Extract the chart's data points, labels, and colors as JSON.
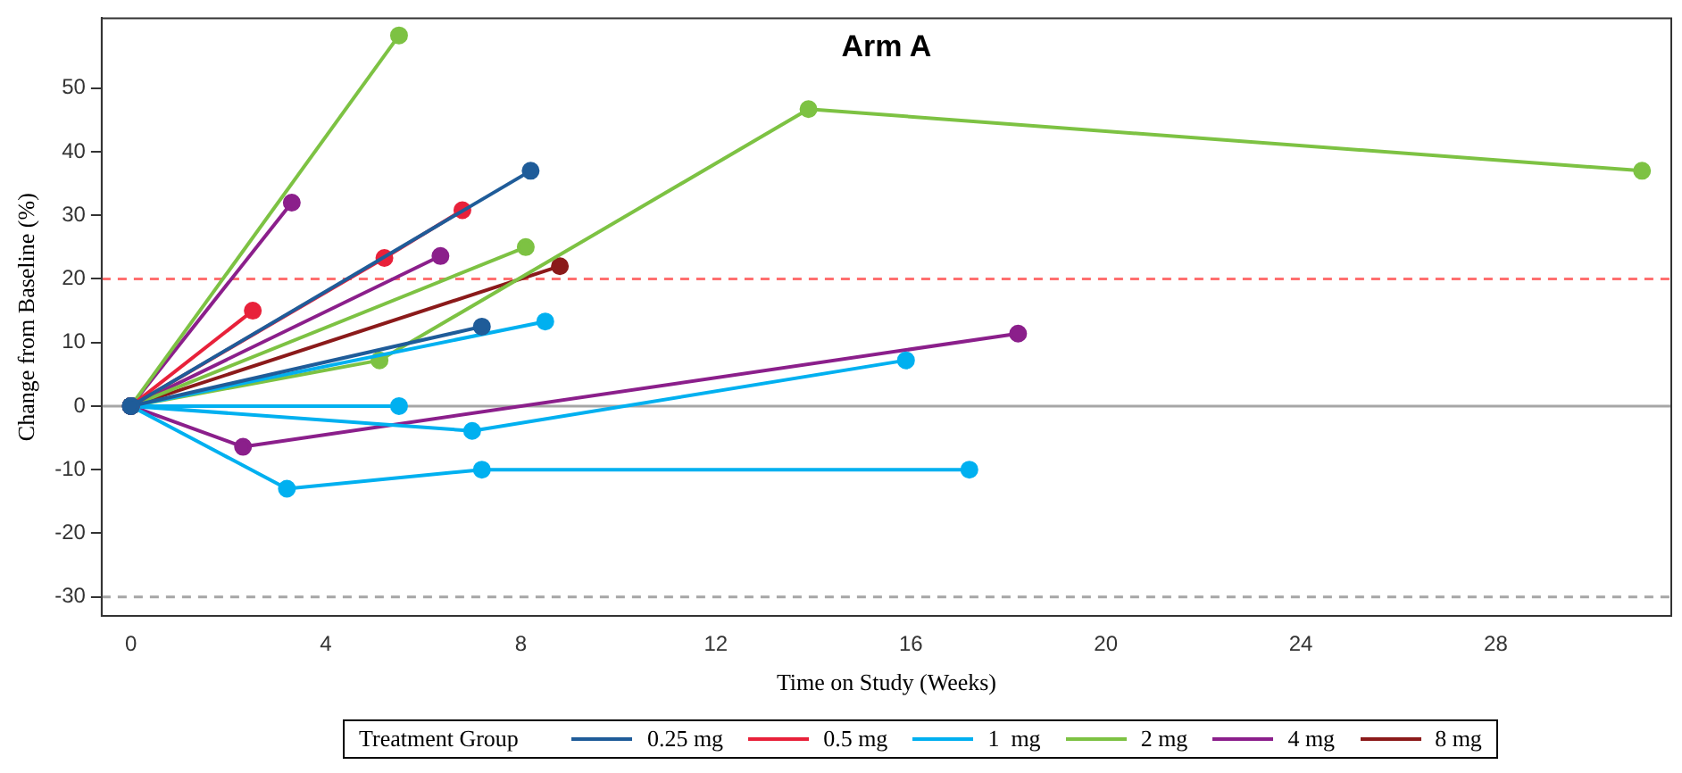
{
  "chart_data": {
    "type": "line",
    "title": "Arm A",
    "xlabel": "Time on Study (Weeks)",
    "ylabel": "Change from Baseline (%)",
    "legend_title": "Treatment Group",
    "xlim": [
      -0.6,
      31.6
    ],
    "xticks": [
      0,
      4,
      8,
      12,
      16,
      20,
      24,
      28
    ],
    "ylim": [
      -33,
      61
    ],
    "yticks": [
      -30,
      -20,
      -10,
      0,
      10,
      20,
      30,
      40,
      50
    ],
    "grid": false,
    "legend": "bottom",
    "marker": "circle",
    "line_style": "solid",
    "ref_lines": [
      {
        "axis": "y",
        "value": 20,
        "label": null,
        "color": "#ff6f6f",
        "line_style": "dashed"
      },
      {
        "axis": "y",
        "value": -30,
        "label": null,
        "color": "#a6a6a6",
        "line_style": "dashed"
      },
      {
        "axis": "y",
        "value": 0,
        "label": null,
        "color": "#a6a6a6",
        "line_style": "solid"
      }
    ],
    "series": [
      {
        "name": "0.25 mg",
        "color": "#1f5c99",
        "x": [
          0,
          8.2
        ],
        "values": [
          0,
          37
        ]
      },
      {
        "color": "#1f5c99",
        "x": [
          0,
          7.2
        ],
        "values": [
          0,
          12.5
        ]
      },
      {
        "name": "0.5 mg",
        "color": "#e8213a",
        "x": [
          0,
          2.5
        ],
        "values": [
          0,
          15
        ]
      },
      {
        "color": "#e8213a",
        "x": [
          0,
          5.2,
          6.8
        ],
        "values": [
          0,
          23.3,
          30.8
        ]
      },
      {
        "name": "1  mg",
        "color": "#00b0f0",
        "x": [
          0,
          8.5
        ],
        "values": [
          0,
          13.3
        ]
      },
      {
        "color": "#00b0f0",
        "x": [
          0,
          5.5
        ],
        "values": [
          0,
          0
        ]
      },
      {
        "color": "#00b0f0",
        "x": [
          0,
          7.0,
          15.9
        ],
        "values": [
          0,
          -3.9,
          7.2
        ]
      },
      {
        "color": "#00b0f0",
        "x": [
          0,
          3.2,
          7.2,
          17.2
        ],
        "values": [
          0,
          -13,
          -10,
          -10
        ]
      },
      {
        "name": "2 mg",
        "color": "#7dc243",
        "x": [
          0,
          5.5
        ],
        "values": [
          0,
          58.3
        ]
      },
      {
        "color": "#7dc243",
        "x": [
          0,
          5.1,
          13.9,
          31
        ],
        "values": [
          0,
          7.2,
          46.7,
          37
        ]
      },
      {
        "color": "#7dc243",
        "x": [
          0,
          8.1
        ],
        "values": [
          0,
          25
        ]
      },
      {
        "name": "4 mg",
        "color": "#8b1f8b",
        "x": [
          0,
          3.3
        ],
        "values": [
          0,
          32
        ]
      },
      {
        "color": "#8b1f8b",
        "x": [
          0,
          6.35
        ],
        "values": [
          0,
          23.6
        ]
      },
      {
        "color": "#8b1f8b",
        "x": [
          0,
          2.3,
          18.2
        ],
        "values": [
          0,
          -6.4,
          11.4
        ]
      },
      {
        "name": "8 mg",
        "color": "#8b1a1a",
        "x": [
          0,
          8.8
        ],
        "values": [
          0,
          22
        ]
      }
    ]
  }
}
